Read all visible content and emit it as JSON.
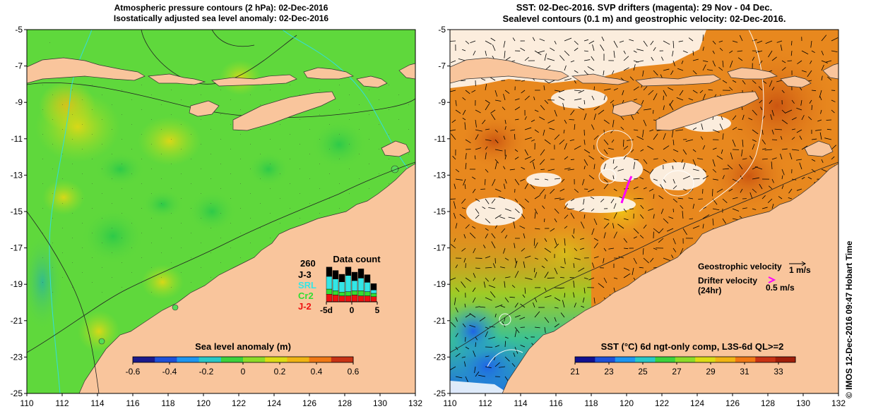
{
  "left_panel": {
    "title_line1": "Atmospheric pressure contours (2 hPa): 02-Dec-2016",
    "title_line2": "Isostatically adjusted sea level anomaly: 02-Dec-2016",
    "colorbar": {
      "label": "Sea level anomaly (m)",
      "min": -0.6,
      "max": 0.6,
      "ticks": [
        "-0.6",
        "-0.4",
        "-0.2",
        "0",
        "0.2",
        "0.4",
        "0.6"
      ],
      "colors": [
        "#1a1a8c",
        "#1e50d8",
        "#1e96f0",
        "#28c8c8",
        "#3cd23c",
        "#8cdc28",
        "#dcdc14",
        "#f0b414",
        "#f07814",
        "#c83214"
      ]
    },
    "data_count": {
      "title": "Data count",
      "max_label": "260",
      "missions": [
        {
          "name": "J-3",
          "color": "#000000"
        },
        {
          "name": "SRL",
          "color": "#33e6e6"
        },
        {
          "name": "Cr2",
          "color": "#33dd33"
        },
        {
          "name": "J-2",
          "color": "#ee1111"
        }
      ],
      "x_ticks": [
        "-5d",
        "0",
        "5"
      ],
      "bars": [
        {
          "j3": 0.22,
          "srl": 0.3,
          "cr2": 0.12,
          "j2": 0.18
        },
        {
          "j3": 0.2,
          "srl": 0.28,
          "cr2": 0.1,
          "j2": 0.16
        },
        {
          "j3": 0.18,
          "srl": 0.24,
          "cr2": 0.09,
          "j2": 0.14
        },
        {
          "j3": 0.2,
          "srl": 0.38,
          "cr2": 0.1,
          "j2": 0.14
        },
        {
          "j3": 0.2,
          "srl": 0.24,
          "cr2": 0.1,
          "j2": 0.16
        },
        {
          "j3": 0.22,
          "srl": 0.3,
          "cr2": 0.12,
          "j2": 0.14
        },
        {
          "j3": 0.18,
          "srl": 0.22,
          "cr2": 0.1,
          "j2": 0.14
        },
        {
          "j3": 0.15,
          "srl": 0.08,
          "cr2": 0.08,
          "j2": 0.12
        }
      ]
    }
  },
  "right_panel": {
    "title_line1": "SST: 02-Dec-2016. SVP drifters (magenta): 29 Nov - 04 Dec.",
    "title_line2": "Sealevel contours (0.1 m) and geostrophic velocity: 02-Dec-2016.",
    "colorbar": {
      "label": "SST (°C) 6d ngt-only comp, L3S-6d QL>=2",
      "min": 21,
      "max": 34,
      "ticks": [
        "21",
        "23",
        "25",
        "27",
        "29",
        "31",
        "33"
      ],
      "colors": [
        "#101090",
        "#1e50d8",
        "#1e96f0",
        "#28c8c8",
        "#3cd23c",
        "#8cdc28",
        "#dcdc14",
        "#f0b414",
        "#f07814",
        "#c83214",
        "#a01e0a"
      ]
    },
    "legend": {
      "geo_label": "Geostrophic velocity",
      "geo_speed": "1 m/s",
      "drifter_label": "Drifter velocity",
      "drifter_period": "(24hr)",
      "drifter_speed": "0.5 m/s"
    }
  },
  "axes": {
    "lon_ticks": [
      "110",
      "112",
      "114",
      "116",
      "118",
      "120",
      "122",
      "124",
      "126",
      "128",
      "130",
      "132"
    ],
    "lat_ticks": [
      "-5",
      "-7",
      "-9",
      "-11",
      "-13",
      "-15",
      "-17",
      "-19",
      "-21",
      "-23",
      "-25"
    ],
    "lon_range": [
      110,
      132
    ],
    "lat_range": [
      -25,
      -5
    ]
  },
  "credit": "© IMOS 12-Dec-2016 09:47 Hobart Time",
  "colors": {
    "land": "#f9c59c",
    "sea_base": "#5fd83c",
    "sst_base": "#e8881e"
  }
}
